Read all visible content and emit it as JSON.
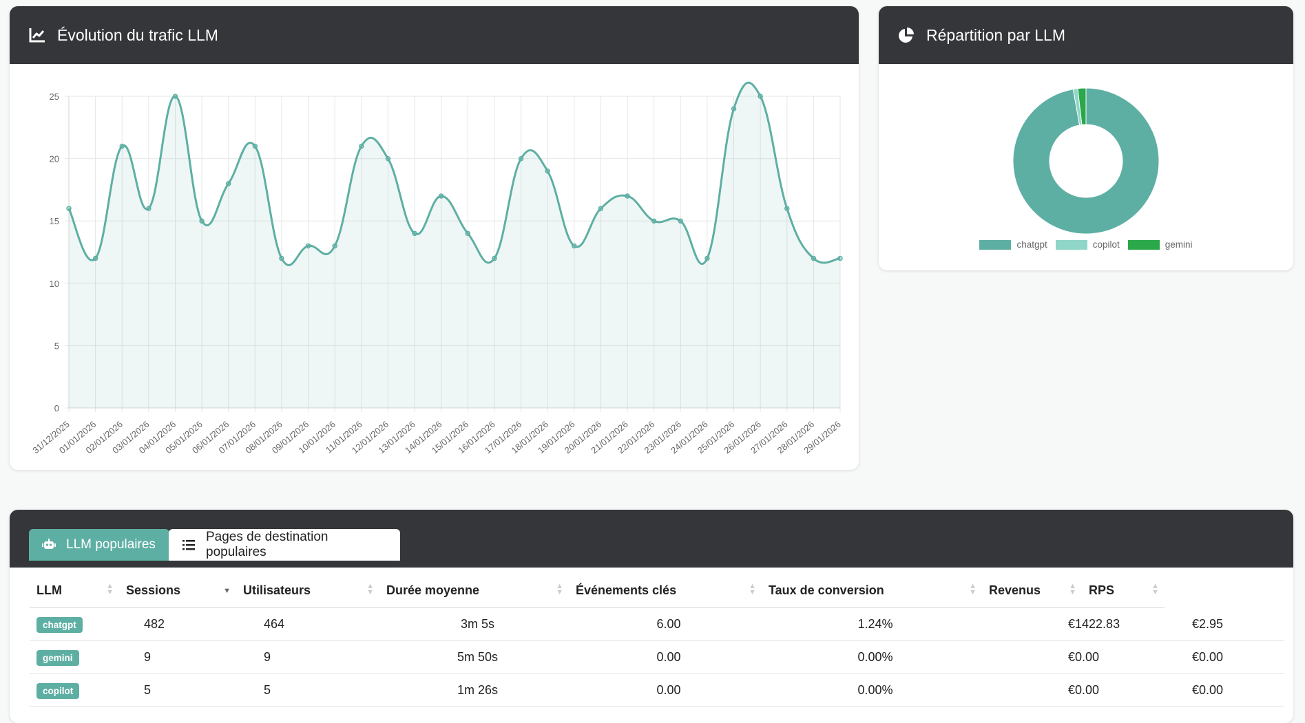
{
  "traffic": {
    "title": "Évolution du trafic LLM",
    "icon": "line-chart-icon"
  },
  "share": {
    "title": "Répartition par LLM",
    "icon": "pie-chart-icon",
    "legend": [
      {
        "label": "chatgpt",
        "color": "#5eafa3"
      },
      {
        "label": "copilot",
        "color": "#8fd6c8"
      },
      {
        "label": "gemini",
        "color": "#2aa84a"
      }
    ]
  },
  "tabs": [
    {
      "label": "LLM populaires",
      "icon": "robot-icon",
      "active": true
    },
    {
      "label": "Pages de destination populaires",
      "icon": "list-icon",
      "active": false
    }
  ],
  "table": {
    "columns": [
      "LLM",
      "Sessions",
      "Utilisateurs",
      "Durée moyenne",
      "Événements clés",
      "Taux de conversion",
      "Revenus",
      "RPS"
    ],
    "sorted_column": "Sessions",
    "sort_direction": "descending",
    "rows": [
      {
        "llm": "chatgpt",
        "sessions": "482",
        "users": "464",
        "duration": "3m 5s",
        "events": "6.00",
        "conversion": "1.24%",
        "revenue": "€1422.83",
        "rps": "€2.95"
      },
      {
        "llm": "gemini",
        "sessions": "9",
        "users": "9",
        "duration": "5m 50s",
        "events": "0.00",
        "conversion": "0.00%",
        "revenue": "€0.00",
        "rps": "€0.00"
      },
      {
        "llm": "copilot",
        "sessions": "5",
        "users": "5",
        "duration": "1m 26s",
        "events": "0.00",
        "conversion": "0.00%",
        "revenue": "€0.00",
        "rps": "€0.00"
      }
    ]
  },
  "chart_data": [
    {
      "type": "area",
      "title": "Évolution du trafic LLM",
      "x": [
        "31/12/2025",
        "01/01/2026",
        "02/01/2026",
        "03/01/2026",
        "04/01/2026",
        "05/01/2026",
        "06/01/2026",
        "07/01/2026",
        "08/01/2026",
        "09/01/2026",
        "10/01/2026",
        "11/01/2026",
        "12/01/2026",
        "13/01/2026",
        "14/01/2026",
        "15/01/2026",
        "16/01/2026",
        "17/01/2026",
        "18/01/2026",
        "19/01/2026",
        "20/01/2026",
        "21/01/2026",
        "22/01/2026",
        "23/01/2026",
        "24/01/2026",
        "25/01/2026",
        "26/01/2026",
        "27/01/2026",
        "28/01/2026",
        "29/01/2026"
      ],
      "values": [
        16,
        12,
        21,
        16,
        25,
        15,
        18,
        21,
        12,
        13,
        13,
        21,
        20,
        14,
        17,
        14,
        12,
        20,
        19,
        13,
        16,
        17,
        15,
        15,
        12,
        24,
        25,
        16,
        12,
        12
      ],
      "yticks": [
        0,
        5,
        10,
        15,
        20,
        25
      ],
      "ylim": [
        0,
        25
      ],
      "grid": true,
      "color": "#5eafa3"
    },
    {
      "type": "pie",
      "title": "Répartition par LLM",
      "labels": [
        "chatgpt",
        "copilot",
        "gemini"
      ],
      "values": [
        482,
        5,
        9
      ],
      "colors": [
        "#5eafa3",
        "#8fd6c8",
        "#2aa84a"
      ],
      "legend_position": "bottom"
    }
  ]
}
